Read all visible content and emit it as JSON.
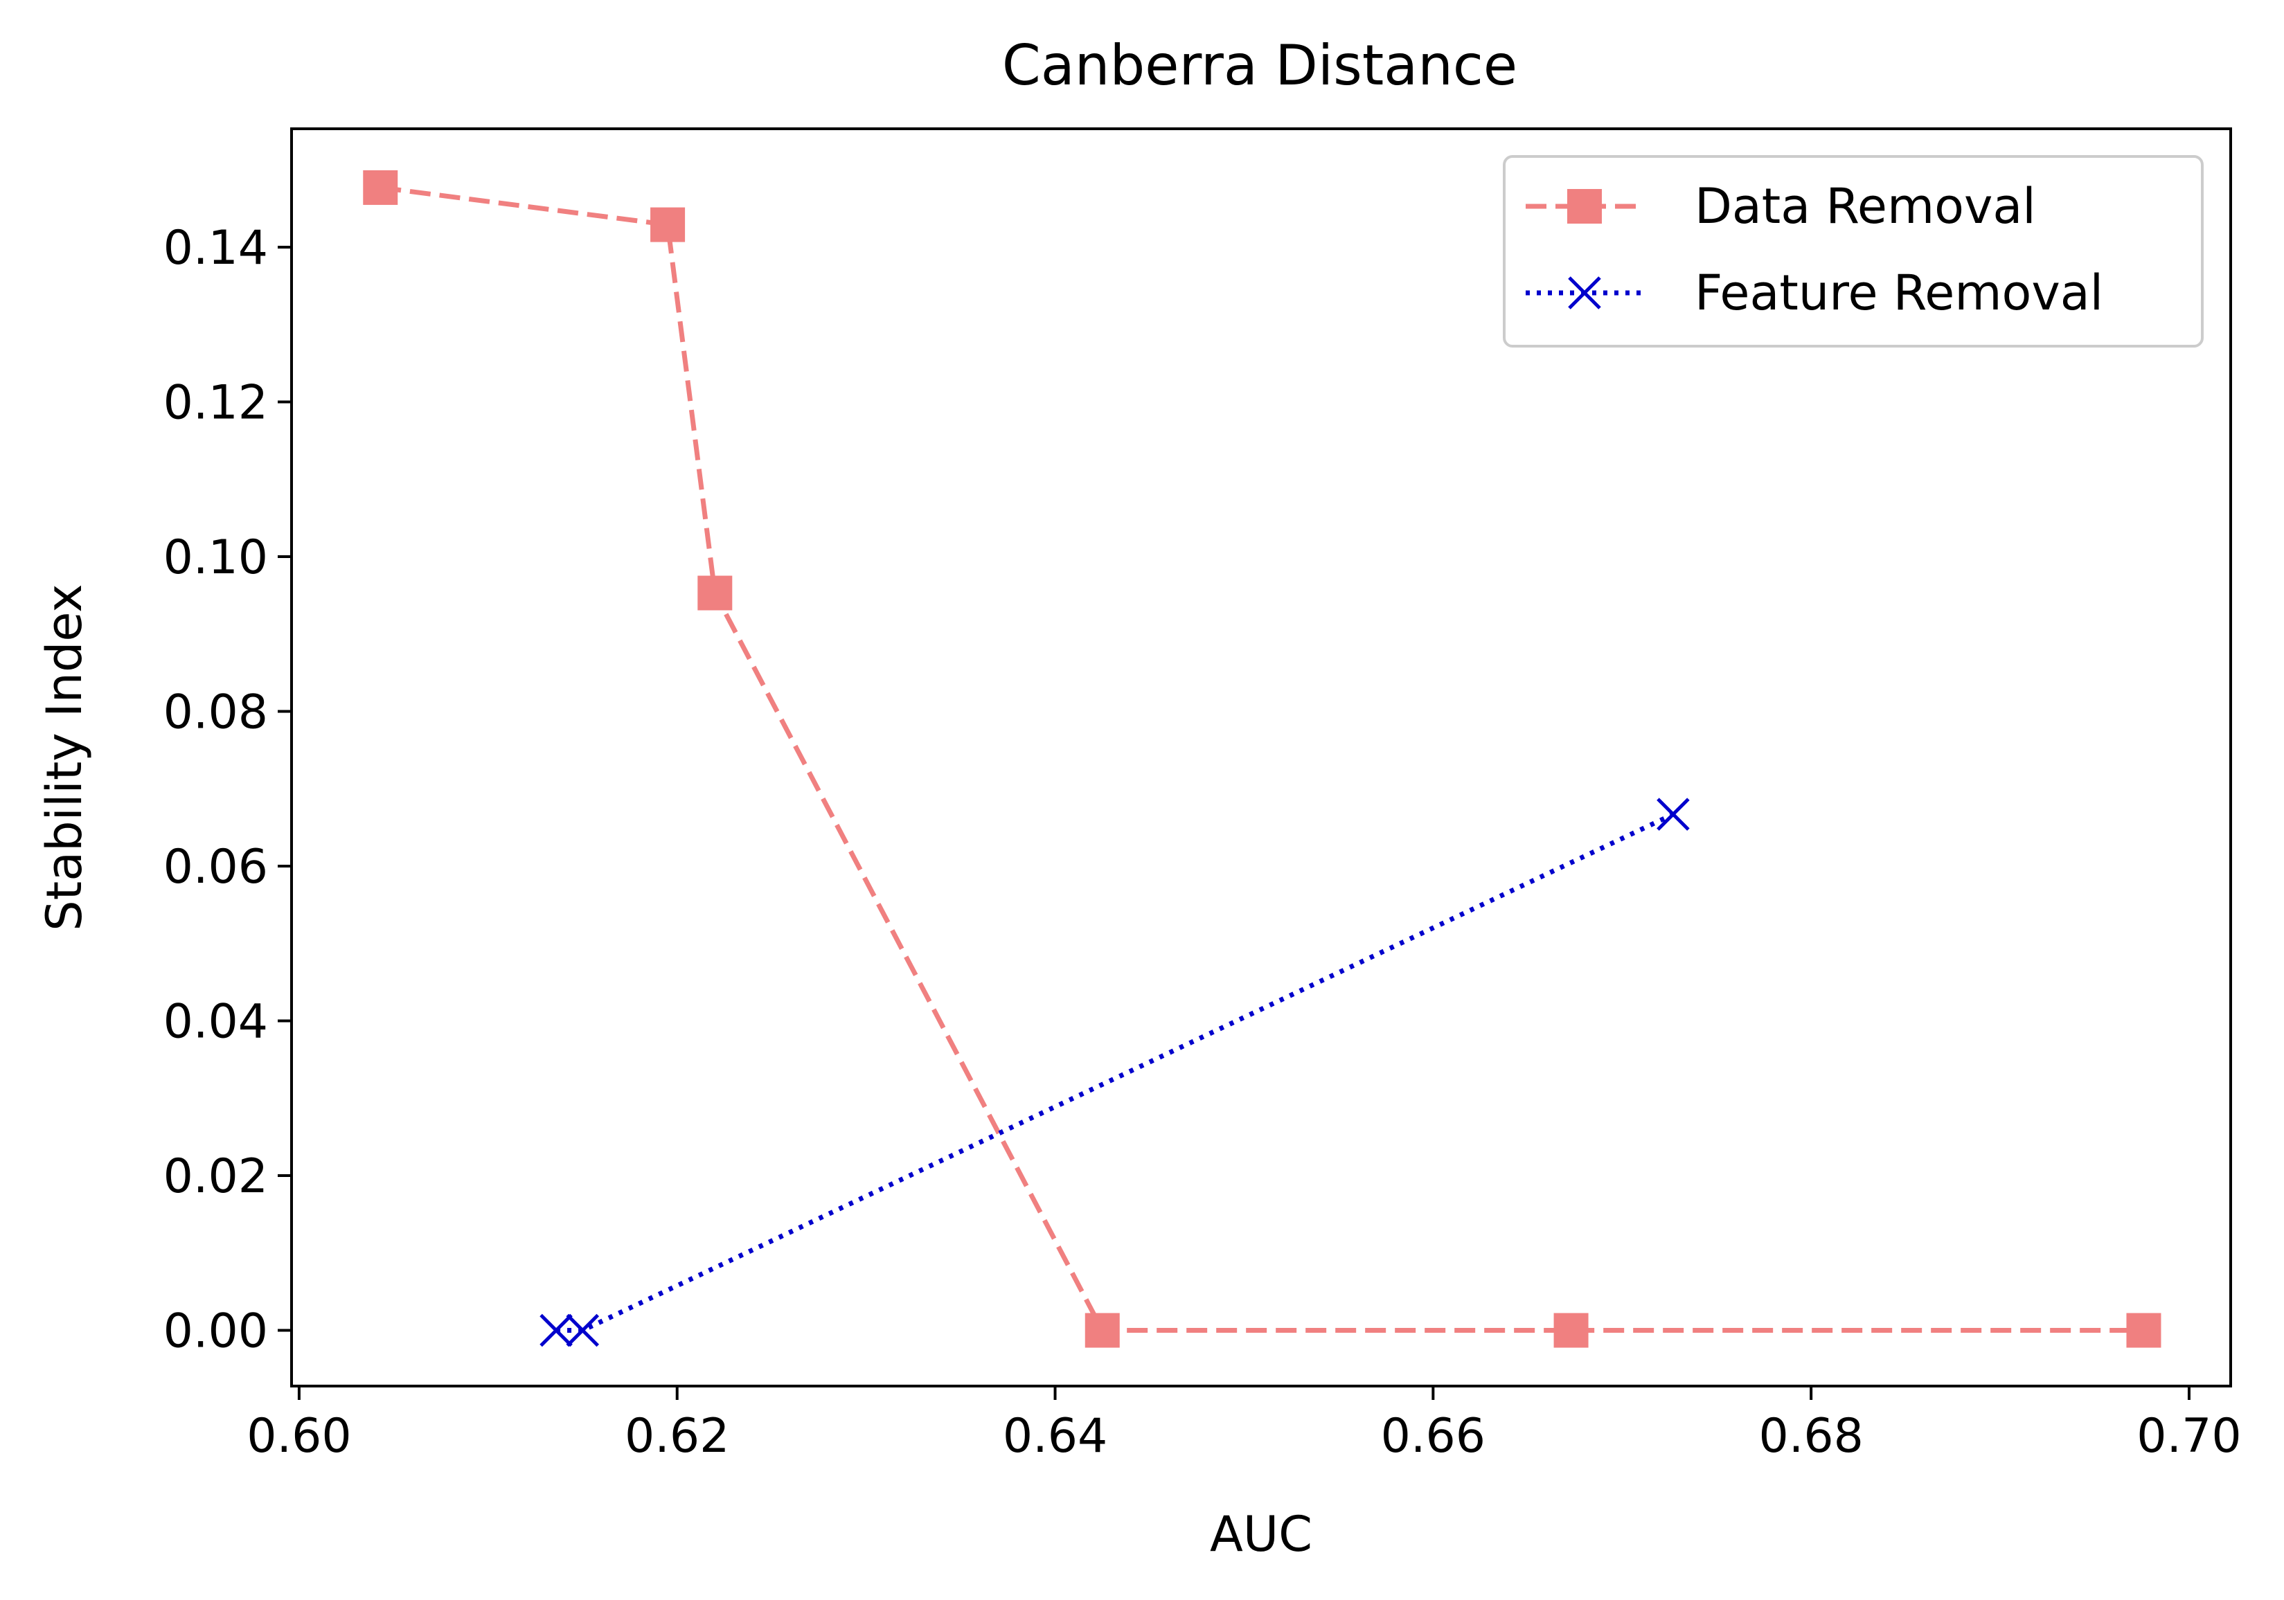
{
  "chart_data": {
    "type": "line",
    "title": "Canberra Distance",
    "xlabel": "AUC",
    "ylabel": "Stability Index",
    "xlim": [
      0.5996,
      0.7022
    ],
    "ylim": [
      -0.0072,
      0.1553
    ],
    "xticks": [
      "0.60",
      "0.62",
      "0.64",
      "0.66",
      "0.68",
      "0.70"
    ],
    "xtick_values": [
      0.6,
      0.62,
      0.64,
      0.66,
      0.68,
      0.7
    ],
    "yticks": [
      "0.00",
      "0.02",
      "0.04",
      "0.06",
      "0.08",
      "0.10",
      "0.12",
      "0.14"
    ],
    "ytick_values": [
      0.0,
      0.02,
      0.04,
      0.06,
      0.08,
      0.1,
      0.12,
      0.14
    ],
    "grid": false,
    "legend_position": "top-right",
    "series": [
      {
        "name": "Data Removal",
        "color": "#f08080",
        "line_style": "dashed",
        "marker": "square",
        "x": [
          0.6043,
          0.6195,
          0.622,
          0.6425,
          0.6673,
          0.6976
        ],
        "y": [
          0.1477,
          0.1429,
          0.0953,
          0.0,
          0.0,
          0.0
        ]
      },
      {
        "name": "Feature Removal",
        "color": "#0000cc",
        "line_style": "dotted",
        "marker": "x",
        "x": [
          0.6136,
          0.615,
          0.6727
        ],
        "y": [
          0.0,
          0.0,
          0.0667
        ]
      }
    ]
  }
}
